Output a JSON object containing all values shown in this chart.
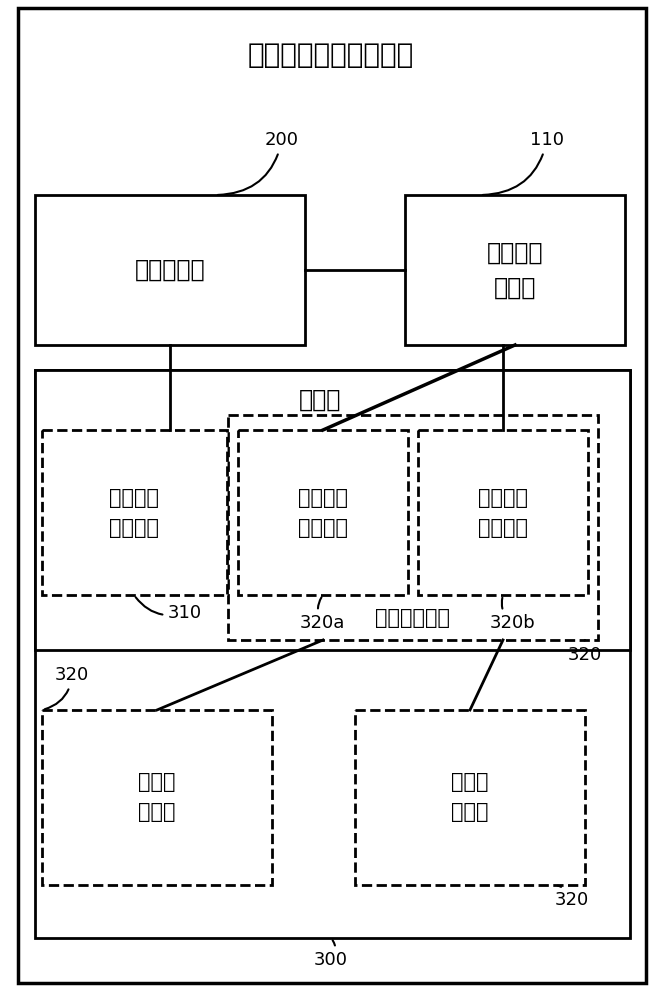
{
  "title": "病变细胞分裂抑制装置",
  "bg_color": "#ffffff",
  "font_size_title": 20,
  "font_size_box_large": 17,
  "font_size_box_med": 15,
  "font_size_label": 13,
  "labels": {
    "voltage_gen": "电压发生器",
    "electrode": "一组电极\n贴片对",
    "controller": "控制器",
    "phase_ctrl": "电压相位\n控制模块",
    "switch1": "第一开关\n控制模块",
    "switch2": "第二开关\n控制模块",
    "field_ctrl_label": "电场控制模块",
    "field_ctrl_bottom": "电场控\n制模块",
    "id_200": "200",
    "id_110": "110",
    "id_310": "310",
    "id_320a": "320a",
    "id_320b": "320b",
    "id_320_left": "320",
    "id_320_right": "320",
    "id_320_br": "320",
    "id_300": "300"
  }
}
